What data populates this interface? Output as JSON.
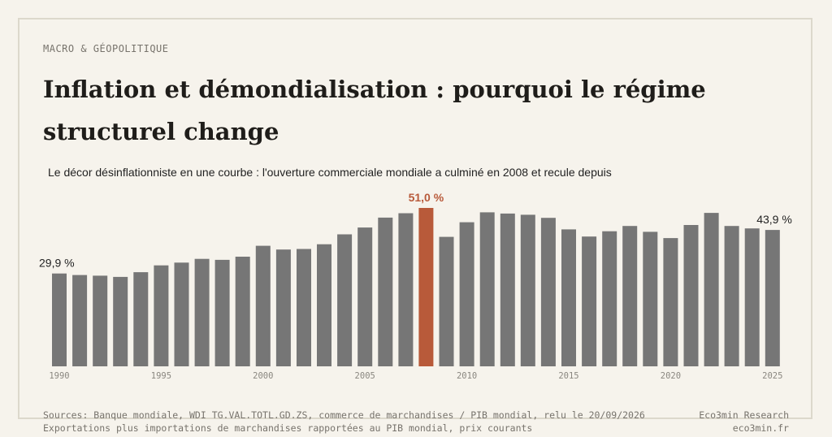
{
  "kicker": "MACRO & GÉOPOLITIQUE",
  "title": "Inflation et démondialisation : pourquoi le régime structurel change",
  "subtitle": "Le décor désinflationniste en une courbe : l'ouverture commerciale mondiale a culminé en 2008 et recule depuis",
  "footer": {
    "source_line1": "Sources: Banque mondiale, WDI TG.VAL.TOTL.GD.ZS, commerce de marchandises / PIB mondial, relu le 20/09/2026",
    "source_line2": "Exportations plus importations de marchandises rapportées au PIB mondial, prix courants",
    "brand_name": "Eco3min Research",
    "brand_url": "eco3min.fr"
  },
  "colors": {
    "bar": "#767676",
    "highlight": "#b85a3a",
    "axis_text": "#8a8780",
    "label_text": "#222222"
  },
  "chart_data": {
    "type": "bar",
    "title": "Le décor désinflationniste en une courbe : l'ouverture commerciale mondiale a culminé en 2008 et recule depuis",
    "xlabel": "",
    "ylabel": "",
    "categories": [
      1990,
      1991,
      1992,
      1993,
      1994,
      1995,
      1996,
      1997,
      1998,
      1999,
      2000,
      2001,
      2002,
      2003,
      2004,
      2005,
      2006,
      2007,
      2008,
      2009,
      2010,
      2011,
      2012,
      2013,
      2014,
      2015,
      2016,
      2017,
      2018,
      2019,
      2020,
      2021,
      2022,
      2023,
      2024,
      2025
    ],
    "values": [
      29.9,
      29.4,
      29.2,
      28.8,
      30.3,
      32.5,
      33.4,
      34.6,
      34.3,
      35.3,
      38.8,
      37.6,
      37.8,
      39.3,
      42.5,
      44.7,
      47.9,
      49.3,
      51.0,
      41.7,
      46.4,
      49.6,
      49.2,
      48.8,
      47.8,
      44.1,
      41.8,
      43.5,
      45.2,
      43.3,
      41.3,
      45.5,
      49.4,
      45.2,
      44.4,
      43.9
    ],
    "ylim": [
      0,
      51
    ],
    "highlight": 2008,
    "tick_labels": [
      "1990",
      "1995",
      "2000",
      "2005",
      "2010",
      "2015",
      "2020",
      "2025"
    ],
    "value_labels": [
      {
        "year": 1990,
        "text": "29,9 %"
      },
      {
        "year": 2008,
        "text": "51,0 %"
      },
      {
        "year": 2025,
        "text": "43,9 %"
      }
    ],
    "grid": false,
    "legend": "none"
  }
}
